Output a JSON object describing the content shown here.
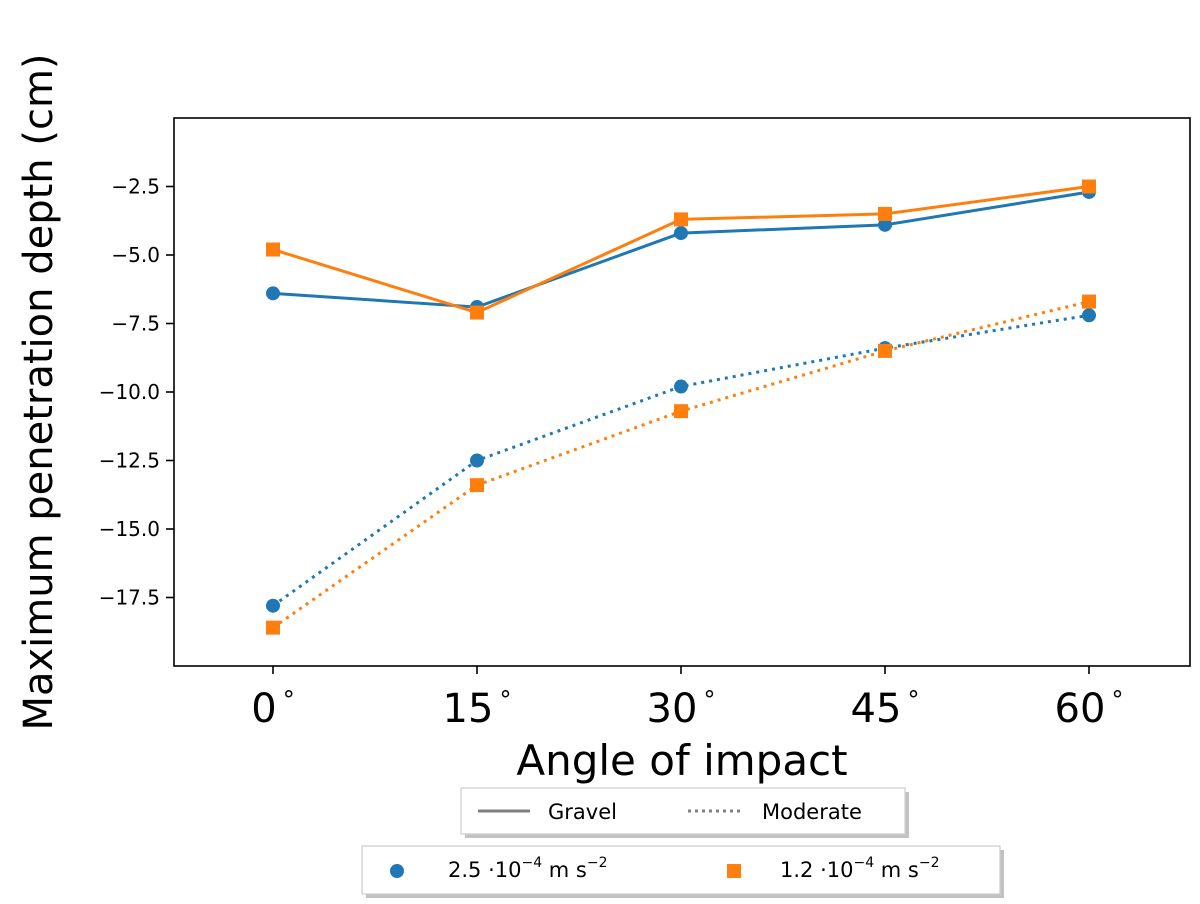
{
  "chart_data": {
    "type": "line",
    "title": "",
    "xlabel": "Angle of impact",
    "ylabel": "Maximum penetration depth (cm)",
    "categories": [
      "0",
      "15",
      "30",
      "45",
      "60"
    ],
    "degree_symbol": "°",
    "ylim": [
      -20.0,
      0.0
    ],
    "yticks": [
      -17.5,
      -15.0,
      -12.5,
      -10.0,
      -7.5,
      -5.0,
      -2.5
    ],
    "ytick_labels": [
      "−17.5",
      "−15.0",
      "−12.5",
      "−10.0",
      "−7.5",
      "−5.0",
      "−2.5"
    ],
    "grid": false,
    "series": [
      {
        "name": "Gravel, 2.5·10⁻⁴ m s⁻²",
        "soil": "Gravel",
        "gravity": "2.5",
        "color": "#1f77b4",
        "marker": "circle",
        "linestyle": "solid",
        "values": [
          -6.4,
          -6.9,
          -4.2,
          -3.9,
          -2.7
        ]
      },
      {
        "name": "Gravel, 1.2·10⁻⁴ m s⁻²",
        "soil": "Gravel",
        "gravity": "1.2",
        "color": "#ff7f0e",
        "marker": "square",
        "linestyle": "solid",
        "values": [
          -4.8,
          -7.1,
          -3.7,
          -3.5,
          -2.5
        ]
      },
      {
        "name": "Moderate, 2.5·10⁻⁴ m s⁻²",
        "soil": "Moderate",
        "gravity": "2.5",
        "color": "#1f77b4",
        "marker": "circle",
        "linestyle": "dotted",
        "values": [
          -17.8,
          -12.5,
          -9.8,
          -8.4,
          -7.2
        ]
      },
      {
        "name": "Moderate, 1.2·10⁻⁴ m s⁻²",
        "soil": "Moderate",
        "gravity": "1.2",
        "color": "#ff7f0e",
        "marker": "square",
        "linestyle": "dotted",
        "values": [
          -18.6,
          -13.4,
          -10.7,
          -8.5,
          -6.7
        ]
      }
    ]
  },
  "legend_linestyle": {
    "items": [
      {
        "label": "Gravel",
        "linestyle": "solid",
        "color": "#808080"
      },
      {
        "label": "Moderate",
        "linestyle": "dotted",
        "color": "#808080"
      }
    ]
  },
  "legend_gravity": {
    "items": [
      {
        "prefix": "2.5 ·10",
        "exp": "−4",
        "mid": " m s",
        "unit_exp": "−2",
        "marker": "circle",
        "color": "#1f77b4"
      },
      {
        "prefix": "1.2 ·10",
        "exp": "−4",
        "mid": " m s",
        "unit_exp": "−2",
        "marker": "square",
        "color": "#ff7f0e"
      }
    ]
  }
}
